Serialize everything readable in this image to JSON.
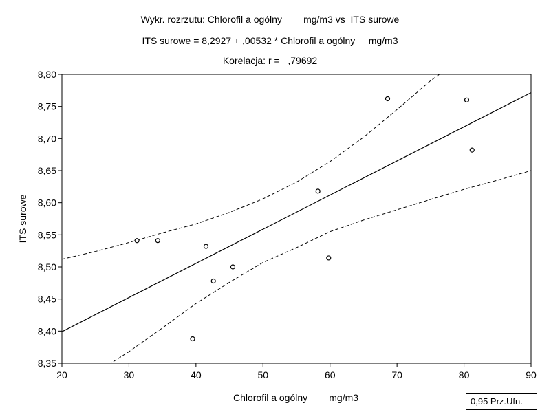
{
  "title_lines": [
    "Wykr. rozrzutu: Chlorofil a ogólny        mg/m3 vs  ITS surowe",
    "ITS surowe = 8,2927 + ,00532 * Chlorofil a ogólny     mg/m3",
    "Korelacja: r =   ,79692"
  ],
  "ci_legend": "0,95 Prz.Ufn.",
  "chart_data": {
    "type": "scatter",
    "xlabel": "Chlorofil a ogólny        mg/m3",
    "ylabel": "ITS surowe",
    "xlim": [
      20,
      90
    ],
    "ylim": [
      8.35,
      8.8
    ],
    "x_ticks": [
      20,
      30,
      40,
      50,
      60,
      70,
      80,
      90
    ],
    "y_ticks": [
      8.35,
      8.4,
      8.45,
      8.5,
      8.55,
      8.6,
      8.65,
      8.7,
      8.75,
      8.8
    ],
    "x_tick_labels": [
      "20",
      "30",
      "40",
      "50",
      "60",
      "70",
      "80",
      "90"
    ],
    "y_tick_labels": [
      "8,35",
      "8,40",
      "8,45",
      "8,50",
      "8,55",
      "8,60",
      "8,65",
      "8,70",
      "8,75",
      "8,80"
    ],
    "points": [
      {
        "x": 31.2,
        "y": 8.541
      },
      {
        "x": 34.3,
        "y": 8.541
      },
      {
        "x": 39.5,
        "y": 8.388
      },
      {
        "x": 41.5,
        "y": 8.532
      },
      {
        "x": 42.6,
        "y": 8.478
      },
      {
        "x": 45.5,
        "y": 8.5
      },
      {
        "x": 58.2,
        "y": 8.618
      },
      {
        "x": 59.8,
        "y": 8.514
      },
      {
        "x": 68.6,
        "y": 8.762
      },
      {
        "x": 80.4,
        "y": 8.76
      },
      {
        "x": 81.2,
        "y": 8.682
      }
    ],
    "regression": {
      "intercept": 8.2927,
      "slope": 0.00532
    },
    "ci_upper": [
      {
        "x": 20,
        "y": 8.512
      },
      {
        "x": 25,
        "y": 8.524
      },
      {
        "x": 30,
        "y": 8.538
      },
      {
        "x": 35,
        "y": 8.553
      },
      {
        "x": 40,
        "y": 8.567
      },
      {
        "x": 45,
        "y": 8.585
      },
      {
        "x": 50,
        "y": 8.606
      },
      {
        "x": 55,
        "y": 8.632
      },
      {
        "x": 60,
        "y": 8.664
      },
      {
        "x": 65,
        "y": 8.702
      },
      {
        "x": 70,
        "y": 8.745
      },
      {
        "x": 75,
        "y": 8.79
      },
      {
        "x": 77,
        "y": 8.805
      }
    ],
    "ci_lower": [
      {
        "x": 27,
        "y": 8.348
      },
      {
        "x": 30,
        "y": 8.368
      },
      {
        "x": 35,
        "y": 8.405
      },
      {
        "x": 40,
        "y": 8.443
      },
      {
        "x": 45,
        "y": 8.476
      },
      {
        "x": 50,
        "y": 8.507
      },
      {
        "x": 55,
        "y": 8.53
      },
      {
        "x": 60,
        "y": 8.555
      },
      {
        "x": 65,
        "y": 8.573
      },
      {
        "x": 70,
        "y": 8.589
      },
      {
        "x": 75,
        "y": 8.605
      },
      {
        "x": 80,
        "y": 8.621
      },
      {
        "x": 85,
        "y": 8.635
      },
      {
        "x": 90,
        "y": 8.65
      }
    ]
  }
}
